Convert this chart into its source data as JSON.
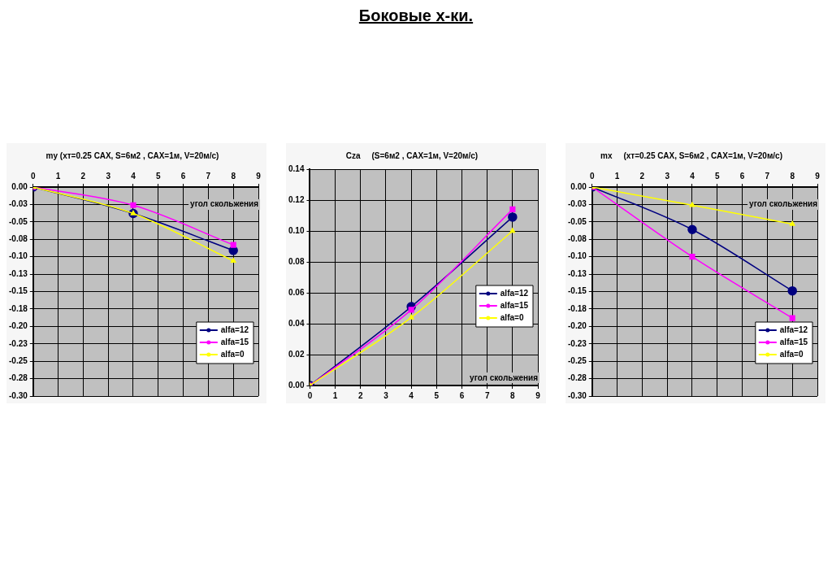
{
  "chart_data": [
    {
      "type": "line",
      "title": "my (хт=0.25 САХ, S=6м2 , САХ=1м, V=20м/с)",
      "xlabel": "угол скольжения",
      "annotations": [
        "Боковые х-ки."
      ],
      "x": [
        0,
        4,
        8
      ],
      "xlim": [
        0,
        9
      ],
      "xticks": [
        0,
        1,
        2,
        3,
        4,
        5,
        6,
        7,
        8,
        9
      ],
      "ylim": [
        -0.3,
        0
      ],
      "yticks": [
        {
          "value": 0,
          "label": "0.00"
        },
        {
          "value": -0.025,
          "label": "-0.03"
        },
        {
          "value": -0.05,
          "label": "-0.05"
        },
        {
          "value": -0.075,
          "label": "-0.08"
        },
        {
          "value": -0.1,
          "label": "-0.10"
        },
        {
          "value": -0.125,
          "label": "-0.13"
        },
        {
          "value": -0.15,
          "label": "-0.15"
        },
        {
          "value": -0.175,
          "label": "-0.18"
        },
        {
          "value": -0.2,
          "label": "-0.20"
        },
        {
          "value": -0.225,
          "label": "-0.23"
        },
        {
          "value": -0.25,
          "label": "-0.25"
        },
        {
          "value": -0.275,
          "label": "-0.28"
        },
        {
          "value": -0.3,
          "label": "-0.30"
        }
      ],
      "grid": true,
      "legend": "bottom right",
      "line_style": "solid",
      "series": [
        {
          "name": "alfa=12",
          "color": "#000080",
          "marker": "circle",
          "values": [
            0,
            -0.038,
            -0.091
          ]
        },
        {
          "name": "alfa=15",
          "color": "#ff00ff",
          "marker": "square",
          "values": [
            0,
            -0.026,
            -0.083
          ]
        },
        {
          "name": "alfa=0",
          "color": "#ffff00",
          "marker": "triangle",
          "values": [
            0,
            -0.038,
            -0.106
          ]
        }
      ]
    },
    {
      "type": "line",
      "title": "Cza     (S=6м2 , САХ=1м, V=20м/с)",
      "xlabel": "угол скольжения",
      "x": [
        0,
        4,
        8
      ],
      "xlim": [
        0,
        9
      ],
      "xticks": [
        0,
        1,
        2,
        3,
        4,
        5,
        6,
        7,
        8,
        9
      ],
      "ylim": [
        0,
        0.14
      ],
      "yticks": [
        {
          "value": 0,
          "label": "0.00"
        },
        {
          "value": 0.02,
          "label": "0.02"
        },
        {
          "value": 0.04,
          "label": "0.04"
        },
        {
          "value": 0.06,
          "label": "0.06"
        },
        {
          "value": 0.08,
          "label": "0.08"
        },
        {
          "value": 0.1,
          "label": "0.10"
        },
        {
          "value": 0.12,
          "label": "0.12"
        },
        {
          "value": 0.14,
          "label": "0.14"
        }
      ],
      "grid": true,
      "legend": "right",
      "line_style": "solid",
      "series": [
        {
          "name": "alfa=12",
          "color": "#000080",
          "marker": "circle",
          "values": [
            0,
            0.051,
            0.109
          ]
        },
        {
          "name": "alfa=15",
          "color": "#ff00ff",
          "marker": "square",
          "values": [
            0,
            0.049,
            0.114
          ]
        },
        {
          "name": "alfa=0",
          "color": "#ffff00",
          "marker": "triangle",
          "values": [
            0,
            0.044,
            0.1
          ]
        }
      ]
    },
    {
      "type": "line",
      "title": "mx     (хт=0.25 САХ, S=6м2 , САХ=1м, V=20м/с)",
      "xlabel": "угол скольжения",
      "x": [
        0,
        4,
        8
      ],
      "xlim": [
        0,
        9
      ],
      "xticks": [
        0,
        1,
        2,
        3,
        4,
        5,
        6,
        7,
        8,
        9
      ],
      "ylim": [
        -0.3,
        0
      ],
      "yticks": [
        {
          "value": 0,
          "label": "0.00"
        },
        {
          "value": -0.025,
          "label": "-0.03"
        },
        {
          "value": -0.05,
          "label": "-0.05"
        },
        {
          "value": -0.075,
          "label": "-0.08"
        },
        {
          "value": -0.1,
          "label": "-0.10"
        },
        {
          "value": -0.125,
          "label": "-0.13"
        },
        {
          "value": -0.15,
          "label": "-0.15"
        },
        {
          "value": -0.175,
          "label": "-0.18"
        },
        {
          "value": -0.2,
          "label": "-0.20"
        },
        {
          "value": -0.225,
          "label": "-0.23"
        },
        {
          "value": -0.25,
          "label": "-0.25"
        },
        {
          "value": -0.275,
          "label": "-0.28"
        },
        {
          "value": -0.3,
          "label": "-0.30"
        }
      ],
      "grid": true,
      "legend": "bottom right",
      "line_style": "solid",
      "series": [
        {
          "name": "alfa=12",
          "color": "#000080",
          "marker": "circle",
          "values": [
            0,
            -0.061,
            -0.149
          ]
        },
        {
          "name": "alfa=15",
          "color": "#ff00ff",
          "marker": "square",
          "values": [
            0,
            -0.1,
            -0.188
          ]
        },
        {
          "name": "alfa=0",
          "color": "#ffff00",
          "marker": "triangle",
          "values": [
            0,
            -0.026,
            -0.053
          ]
        }
      ]
    }
  ]
}
